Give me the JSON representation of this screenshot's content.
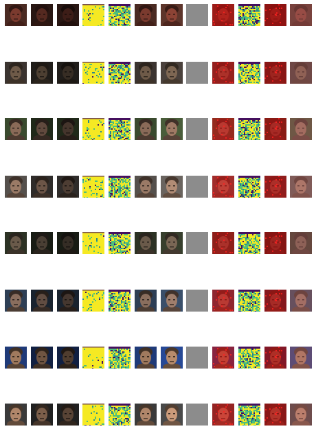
{
  "grid": {
    "rows": [
      {
        "tone": "#7a3a2e",
        "bg": "#4a2a22"
      },
      {
        "tone": "#6e5a48",
        "bg": "#3b3430"
      },
      {
        "tone": "#8a6a58",
        "bg": "#3a4a2e"
      },
      {
        "tone": "#9a7a66",
        "bg": "#55504c"
      },
      {
        "tone": "#6a5a4a",
        "bg": "#2c3224"
      },
      {
        "tone": "#8a6e5e",
        "bg": "#2e3f55"
      },
      {
        "tone": "#a07a5e",
        "bg": "#1f3a78"
      },
      {
        "tone": "#b0866a",
        "bg": "#3a3a3a"
      }
    ],
    "columns": [
      {
        "kind": "face",
        "variant": "original"
      },
      {
        "kind": "face",
        "variant": "target"
      },
      {
        "kind": "face",
        "variant": "target-dark"
      },
      {
        "kind": "map",
        "variant": "yellow"
      },
      {
        "kind": "map",
        "variant": "mixed"
      },
      {
        "kind": "face",
        "variant": "original"
      },
      {
        "kind": "face",
        "variant": "original-light"
      },
      {
        "kind": "blank",
        "variant": "gray"
      },
      {
        "kind": "redface",
        "variant": "original"
      },
      {
        "kind": "map",
        "variant": "mixed"
      },
      {
        "kind": "redface",
        "variant": "target"
      },
      {
        "kind": "face",
        "variant": "pinkish"
      }
    ],
    "colors": {
      "map_yellow": "#f5e923",
      "map_green": "#4fbf7a",
      "map_teal": "#2a8a8c",
      "map_purple": "#45105e",
      "blank_gray": "#8c8c8c",
      "red_overlay": "#e01010"
    }
  }
}
